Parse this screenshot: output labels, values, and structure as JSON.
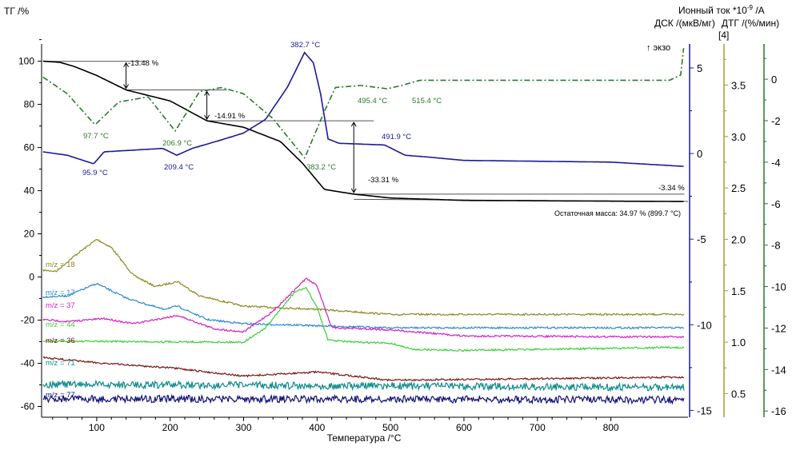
{
  "chart_data": {
    "type": "line",
    "xlabel": "Температура /°C",
    "xlim": [
      25,
      905
    ],
    "x_ticks": [
      100,
      200,
      300,
      400,
      500,
      600,
      700,
      800
    ],
    "exo_label": "↑ экзо",
    "axes": {
      "tg": {
        "label": "ТГ /%",
        "lim": [
          -65,
          108
        ],
        "ticks": [
          100,
          80,
          60,
          40,
          20,
          0,
          -20,
          -40,
          -60
        ],
        "color": "#000000"
      },
      "ion": {
        "label": "Ионный ток *10-9 /A",
        "sub_label": "[4]",
        "lim": [
          0.27,
          3.9
        ],
        "ticks": [
          3.5,
          3.0,
          2.5,
          2.0,
          1.5,
          1.0,
          0.5
        ],
        "color": "#a0a030"
      },
      "dsc": {
        "label": "ДСК /(мкВ/мг)",
        "lim": [
          -15.4,
          6.4
        ],
        "ticks": [
          5,
          0,
          -5,
          -10,
          -15
        ],
        "color": "#1a1a9a"
      },
      "dtg": {
        "label": "ДТГ /(%/мин)",
        "lim": [
          -16.3,
          1.7
        ],
        "ticks": [
          0,
          -2,
          -4,
          -6,
          -8,
          -10,
          -12,
          -14,
          -16
        ],
        "color": "#2a7a2a"
      }
    },
    "series": [
      {
        "name": "ТГ",
        "axis": "tg",
        "color": "#000000",
        "style": "solid",
        "x": [
          27,
          50,
          70,
          100,
          140,
          200,
          250,
          300,
          350,
          380,
          410,
          450,
          500,
          600,
          900
        ],
        "y": [
          100,
          99.5,
          97.5,
          93.4,
          86.7,
          81.6,
          72.4,
          69.4,
          62.8,
          52.8,
          40.6,
          38.4,
          36.6,
          35.5,
          34.97
        ]
      },
      {
        "name": "ДСК",
        "axis": "dsc",
        "color": "#1a1a9a",
        "style": "solid",
        "x": [
          27,
          60,
          96,
          110,
          150,
          190,
          209,
          230,
          270,
          300,
          330,
          360,
          383,
          395,
          405,
          415,
          430,
          492,
          520,
          550,
          600,
          700,
          800,
          900
        ],
        "y": [
          0.1,
          -0.1,
          -0.6,
          0.1,
          0.2,
          0.3,
          -0.1,
          0.3,
          0.8,
          1.2,
          2.0,
          3.9,
          5.9,
          5.3,
          3.45,
          0.85,
          0.6,
          0.5,
          -0.1,
          -0.2,
          -0.4,
          -0.45,
          -0.5,
          -0.75
        ]
      },
      {
        "name": "ДТГ",
        "axis": "dtg",
        "color": "#2a7a2a",
        "style": "dashdot",
        "x": [
          27,
          60,
          97.7,
          130,
          170,
          206.9,
          240,
          270,
          300,
          340,
          383.2,
          410,
          425,
          460,
          495.4,
          515.4,
          540,
          880,
          895,
          899
        ],
        "y": [
          0.1,
          -0.7,
          -2.2,
          -1.1,
          -0.85,
          -2.5,
          -0.6,
          -0.4,
          -0.7,
          -1.9,
          -3.8,
          -1.55,
          -0.4,
          -0.3,
          -0.46,
          -0.3,
          -0.05,
          -0.05,
          0.2,
          1.5
        ]
      },
      {
        "name": "m/z = 18",
        "axis": "ion",
        "color": "#8a8a20",
        "style": "solid",
        "x": [
          27,
          45,
          70,
          100,
          120,
          150,
          180,
          210,
          240,
          300,
          400,
          500,
          900
        ],
        "y": [
          1.7,
          1.69,
          1.84,
          2.0,
          1.92,
          1.65,
          1.54,
          1.59,
          1.45,
          1.35,
          1.32,
          1.27,
          1.27
        ]
      },
      {
        "name": "m/z = 17",
        "axis": "ion",
        "color": "#2a88d0",
        "style": "solid",
        "x": [
          27,
          60,
          100,
          140,
          190,
          210,
          250,
          300,
          400,
          500,
          900
        ],
        "y": [
          1.44,
          1.45,
          1.57,
          1.43,
          1.32,
          1.35,
          1.22,
          1.18,
          1.16,
          1.14,
          1.14
        ]
      },
      {
        "name": "m/z = 37",
        "axis": "ion",
        "color": "#d020c8",
        "style": "solid",
        "x": [
          27,
          60,
          110,
          150,
          210,
          260,
          300,
          340,
          385,
          400,
          420,
          500,
          600,
          900
        ],
        "y": [
          1.22,
          1.2,
          1.23,
          1.18,
          1.26,
          1.13,
          1.1,
          1.3,
          1.62,
          1.55,
          1.14,
          1.12,
          1.06,
          1.05
        ]
      },
      {
        "name": "m/z = 44",
        "axis": "ion",
        "color": "#3ad03a",
        "style": "solid",
        "x": [
          27,
          300,
          330,
          370,
          385,
          400,
          415,
          450,
          500,
          530,
          600,
          900
        ],
        "y": [
          1.01,
          1.0,
          1.14,
          1.49,
          1.53,
          1.34,
          1.02,
          1.0,
          0.99,
          0.93,
          0.92,
          0.95
        ]
      },
      {
        "name": "m/z = 36",
        "axis": "ion",
        "color": "#7a1414",
        "style": "solid",
        "x": [
          27,
          100,
          200,
          300,
          400,
          500,
          900
        ],
        "y": [
          0.85,
          0.8,
          0.75,
          0.67,
          0.71,
          0.63,
          0.66
        ]
      },
      {
        "name": "m/z = 71",
        "axis": "ion",
        "color": "#108a8a",
        "style": "noisy",
        "x": [
          27,
          900
        ],
        "y": [
          0.59,
          0.56
        ]
      },
      {
        "name": "m/z = 77",
        "axis": "ion",
        "color": "#10107a",
        "style": "noisy",
        "x": [
          27,
          900
        ],
        "y": [
          0.45,
          0.44
        ]
      }
    ],
    "mass_steps": [
      {
        "label": "-13.48 %",
        "from_T": 30,
        "to_T": 140
      },
      {
        "label": "-14.91 %",
        "from_T": 140,
        "to_T": 250
      },
      {
        "label": "-33.31 %",
        "from_T": 250,
        "to_T": 450
      },
      {
        "label": "-3.34 %",
        "from_T": 450,
        "to_T": 900
      }
    ],
    "residual_mass": "Остаточная масса: 34.97 % (899.7 °C)",
    "peak_labels": {
      "dtg": [
        "97.7 °C",
        "206.9 °C",
        "383.2 °C",
        "495.4 °C",
        "515.4 °C"
      ],
      "dsc": [
        "382.7 °C",
        "95.9 °C",
        "209.4 °C",
        "491.9 °C"
      ]
    }
  }
}
